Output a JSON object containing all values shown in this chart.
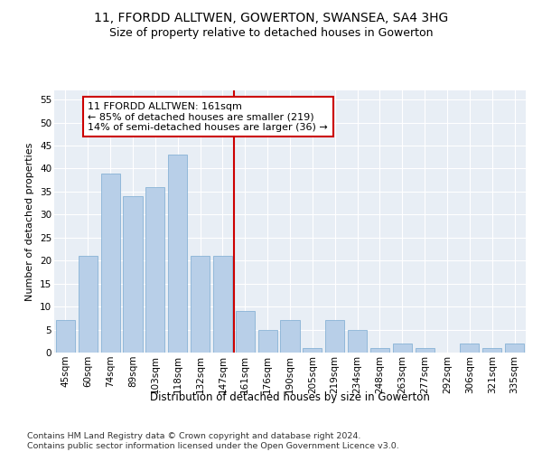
{
  "title": "11, FFORDD ALLTWEN, GOWERTON, SWANSEA, SA4 3HG",
  "subtitle": "Size of property relative to detached houses in Gowerton",
  "xlabel": "Distribution of detached houses by size in Gowerton",
  "ylabel": "Number of detached properties",
  "categories": [
    "45sqm",
    "60sqm",
    "74sqm",
    "89sqm",
    "103sqm",
    "118sqm",
    "132sqm",
    "147sqm",
    "161sqm",
    "176sqm",
    "190sqm",
    "205sqm",
    "219sqm",
    "234sqm",
    "248sqm",
    "263sqm",
    "277sqm",
    "292sqm",
    "306sqm",
    "321sqm",
    "335sqm"
  ],
  "values": [
    7,
    21,
    39,
    34,
    36,
    43,
    21,
    21,
    9,
    5,
    7,
    1,
    7,
    5,
    1,
    2,
    1,
    0,
    2,
    1,
    2
  ],
  "bar_color": "#b8cfe8",
  "bar_edge_color": "#7aaad0",
  "vline_color": "#cc0000",
  "annotation_text": "11 FFORDD ALLTWEN: 161sqm\n← 85% of detached houses are smaller (219)\n14% of semi-detached houses are larger (36) →",
  "annotation_box_color": "#cc0000",
  "ylim": [
    0,
    57
  ],
  "yticks": [
    0,
    5,
    10,
    15,
    20,
    25,
    30,
    35,
    40,
    45,
    50,
    55
  ],
  "footer": "Contains HM Land Registry data © Crown copyright and database right 2024.\nContains public sector information licensed under the Open Government Licence v3.0.",
  "plot_bg_color": "#e8eef5",
  "title_fontsize": 10,
  "subtitle_fontsize": 9,
  "axis_fontsize": 7.5,
  "ylabel_fontsize": 8,
  "xlabel_fontsize": 8.5,
  "annotation_fontsize": 8,
  "footer_fontsize": 6.8
}
